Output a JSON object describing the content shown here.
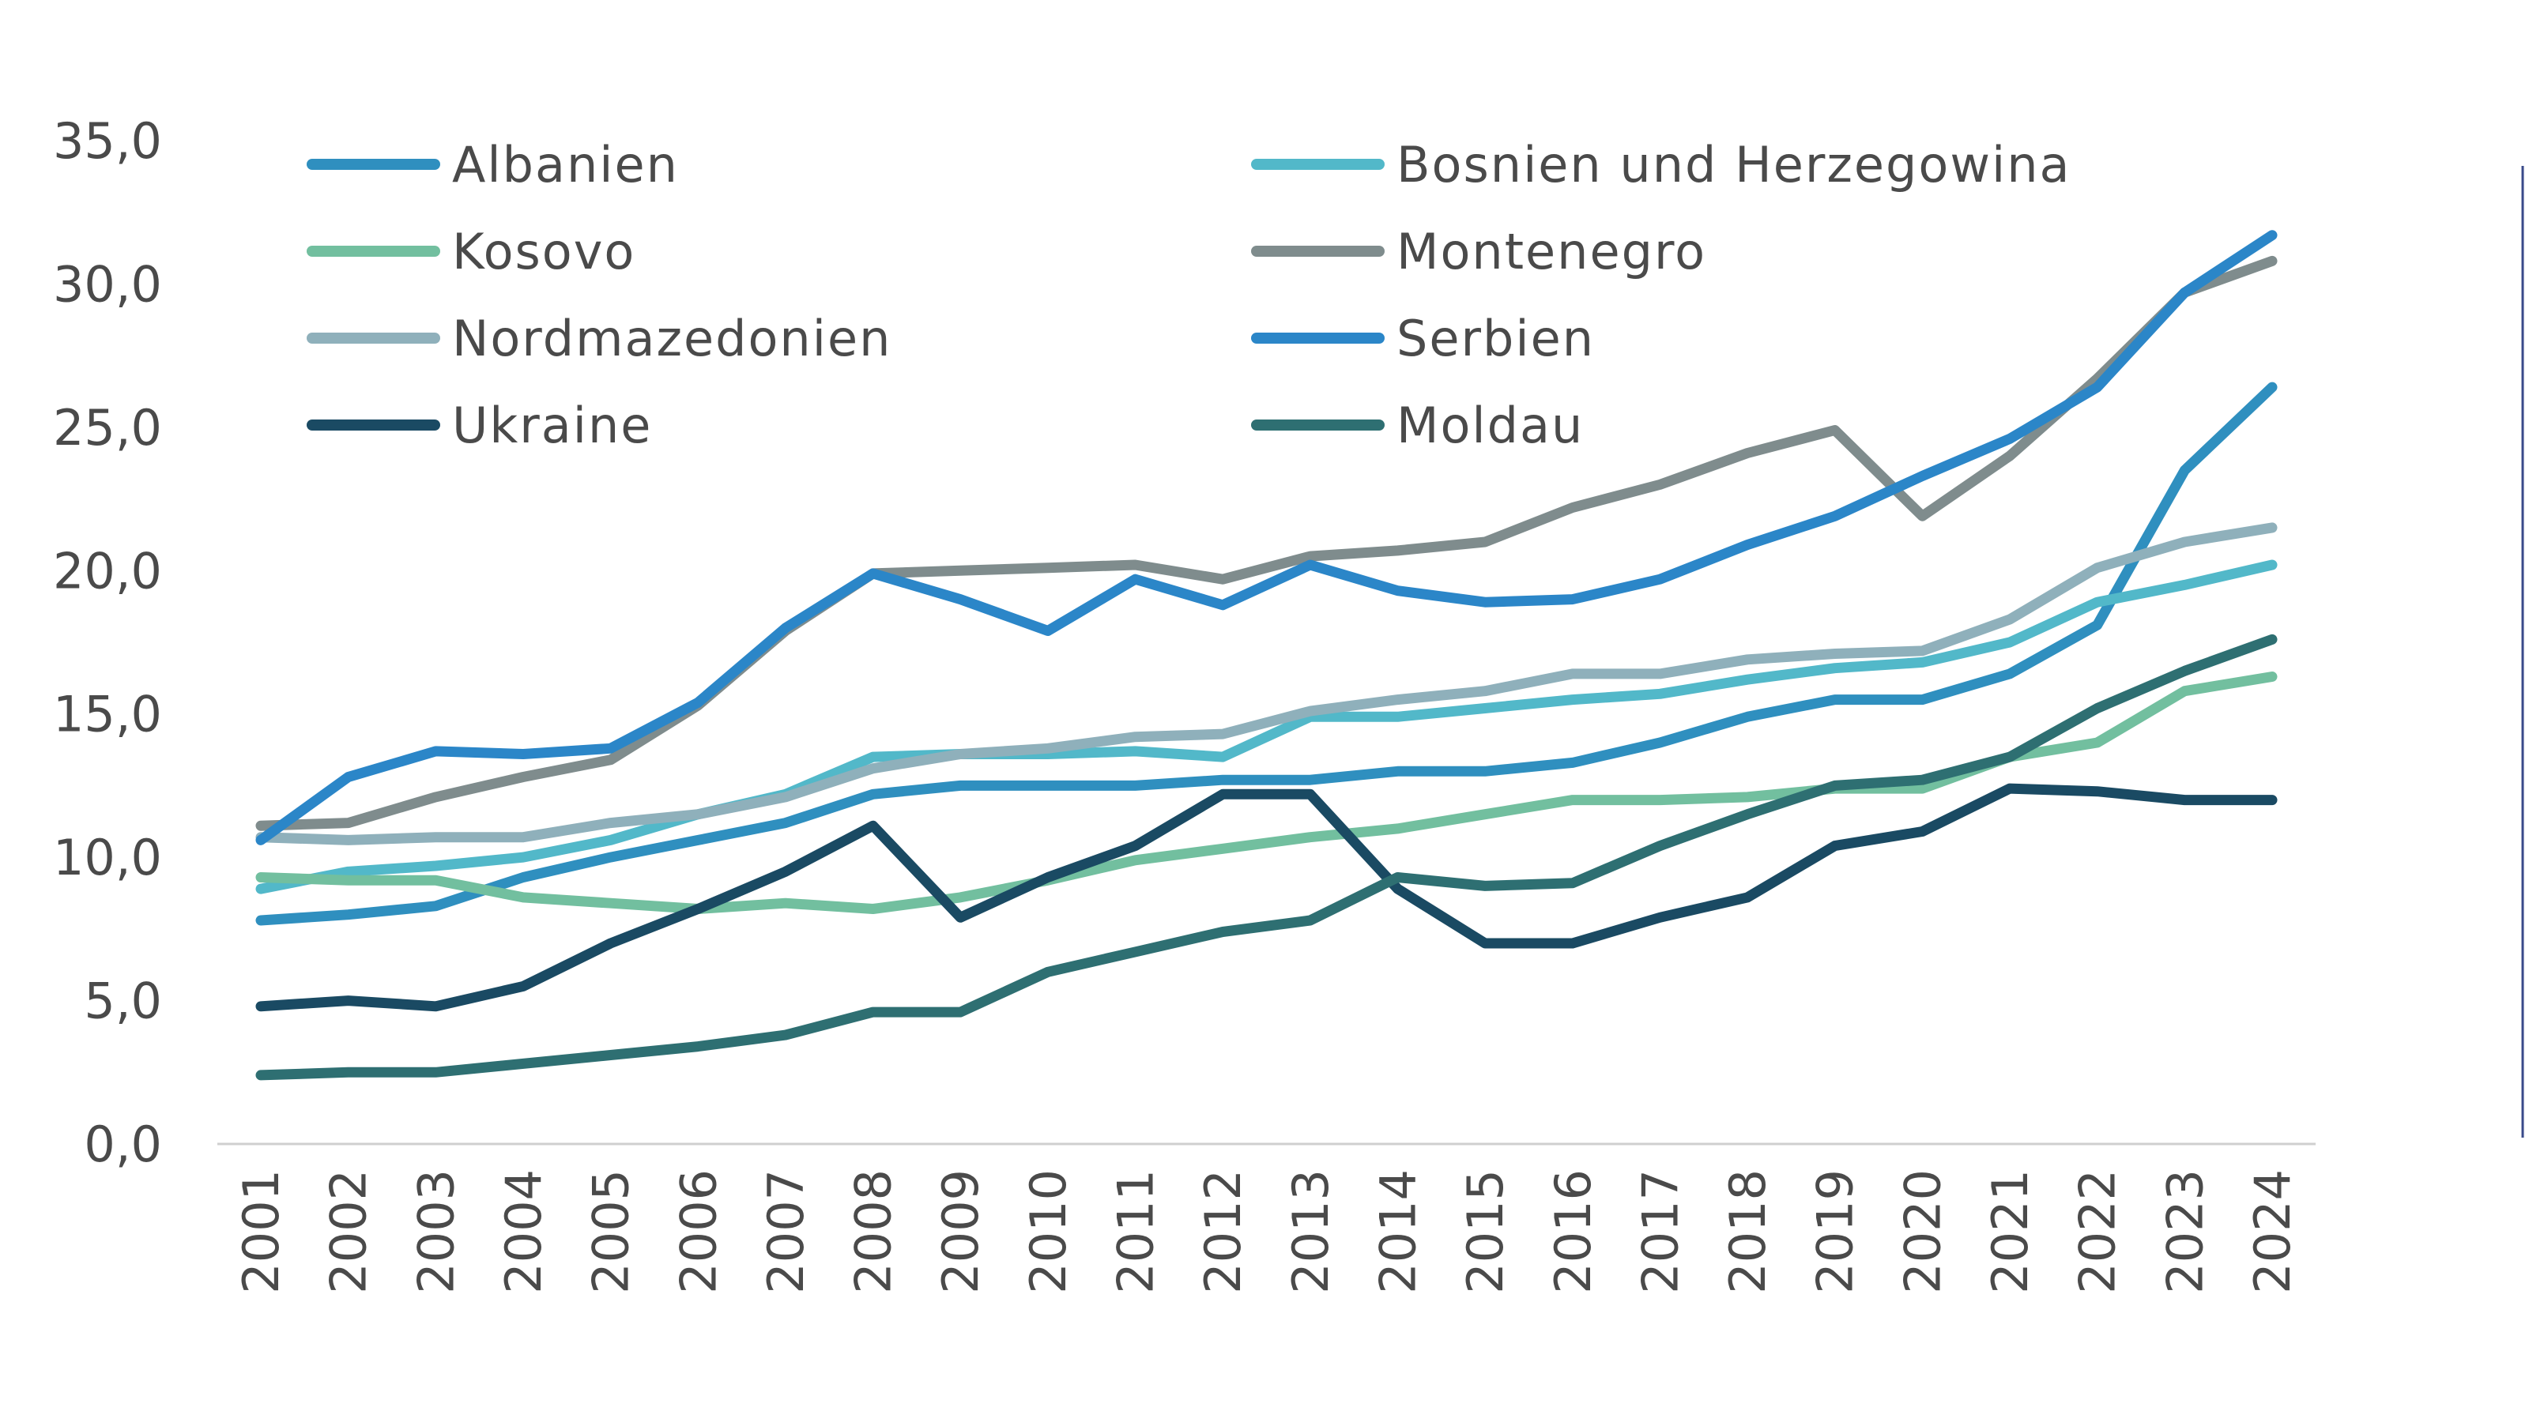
{
  "chart_data": {
    "type": "line",
    "title": "",
    "xlabel": "",
    "ylabel": "",
    "ylim": [
      0,
      35
    ],
    "yticks": [
      "0,0",
      "5,0",
      "10,0",
      "15,0",
      "20,0",
      "25,0",
      "30,0",
      "35,0"
    ],
    "grid": false,
    "legend_position": "top",
    "x": [
      "2001",
      "2002",
      "2003",
      "2004",
      "2005",
      "2006",
      "2007",
      "2008",
      "2009",
      "2010",
      "2011",
      "2012",
      "2013",
      "2014",
      "2015",
      "2016",
      "2017",
      "2018",
      "2019",
      "2020",
      "2021",
      "2022",
      "2023",
      "2024"
    ],
    "series": [
      {
        "name": "Albanien",
        "color": "#2f8fbf",
        "values": [
          7.8,
          8.0,
          8.3,
          9.3,
          10.0,
          10.6,
          11.2,
          12.2,
          12.5,
          12.5,
          12.5,
          12.7,
          12.7,
          13.0,
          13.0,
          13.3,
          14.0,
          14.9,
          15.5,
          15.5,
          16.4,
          18.1,
          23.5,
          26.4
        ]
      },
      {
        "name": "Bosnien und Herzegowina",
        "color": "#52b8c9",
        "values": [
          8.9,
          9.5,
          9.7,
          10.0,
          10.6,
          11.5,
          12.2,
          13.5,
          13.6,
          13.6,
          13.7,
          13.5,
          14.9,
          14.9,
          15.2,
          15.5,
          15.7,
          16.2,
          16.6,
          16.8,
          17.5,
          18.9,
          19.5,
          20.2
        ]
      },
      {
        "name": "Kosovo",
        "color": "#72bf9f",
        "values": [
          9.3,
          9.2,
          9.2,
          8.6,
          8.4,
          8.2,
          8.4,
          8.2,
          8.6,
          9.2,
          9.9,
          10.3,
          10.7,
          11.0,
          11.5,
          12.0,
          12.0,
          12.1,
          12.4,
          12.4,
          13.5,
          14.0,
          15.8,
          16.3
        ]
      },
      {
        "name": "Montenegro",
        "color": "#7f8c8d",
        "values": [
          11.1,
          11.2,
          12.1,
          12.8,
          13.4,
          15.3,
          17.9,
          19.9,
          20.0,
          20.1,
          20.2,
          19.7,
          20.5,
          20.7,
          21.0,
          22.2,
          23.0,
          24.1,
          24.9,
          21.9,
          24.0,
          26.7,
          29.7,
          30.8
        ]
      },
      {
        "name": "Nordmazedonien",
        "color": "#8fb0bb",
        "values": [
          10.7,
          10.6,
          10.7,
          10.7,
          11.2,
          11.5,
          12.1,
          13.1,
          13.6,
          13.8,
          14.2,
          14.3,
          15.1,
          15.5,
          15.8,
          16.4,
          16.4,
          16.9,
          17.1,
          17.2,
          18.3,
          20.1,
          21.0,
          21.5
        ]
      },
      {
        "name": "Serbien",
        "color": "#2b86c8",
        "values": [
          10.6,
          12.8,
          13.7,
          13.6,
          13.8,
          15.4,
          18.0,
          19.9,
          19.0,
          17.9,
          19.7,
          18.8,
          20.2,
          19.3,
          18.9,
          19.0,
          19.7,
          20.9,
          21.9,
          23.3,
          24.6,
          26.4,
          29.7,
          31.7
        ]
      },
      {
        "name": "Ukraine",
        "color": "#1a4a63",
        "values": [
          4.8,
          5.0,
          4.8,
          5.5,
          7.0,
          8.2,
          9.5,
          11.1,
          7.9,
          9.3,
          10.4,
          12.2,
          12.2,
          8.9,
          7.0,
          7.0,
          7.9,
          8.6,
          10.4,
          10.9,
          12.4,
          12.3,
          12.0,
          12.0
        ]
      },
      {
        "name": "Moldau",
        "color": "#2e6f72",
        "values": [
          2.4,
          2.5,
          2.5,
          2.8,
          3.1,
          3.4,
          3.8,
          4.6,
          4.6,
          6.0,
          6.7,
          7.4,
          7.8,
          9.3,
          9.0,
          9.1,
          10.4,
          11.5,
          12.5,
          12.7,
          13.5,
          15.2,
          16.5,
          17.6
        ]
      }
    ]
  }
}
